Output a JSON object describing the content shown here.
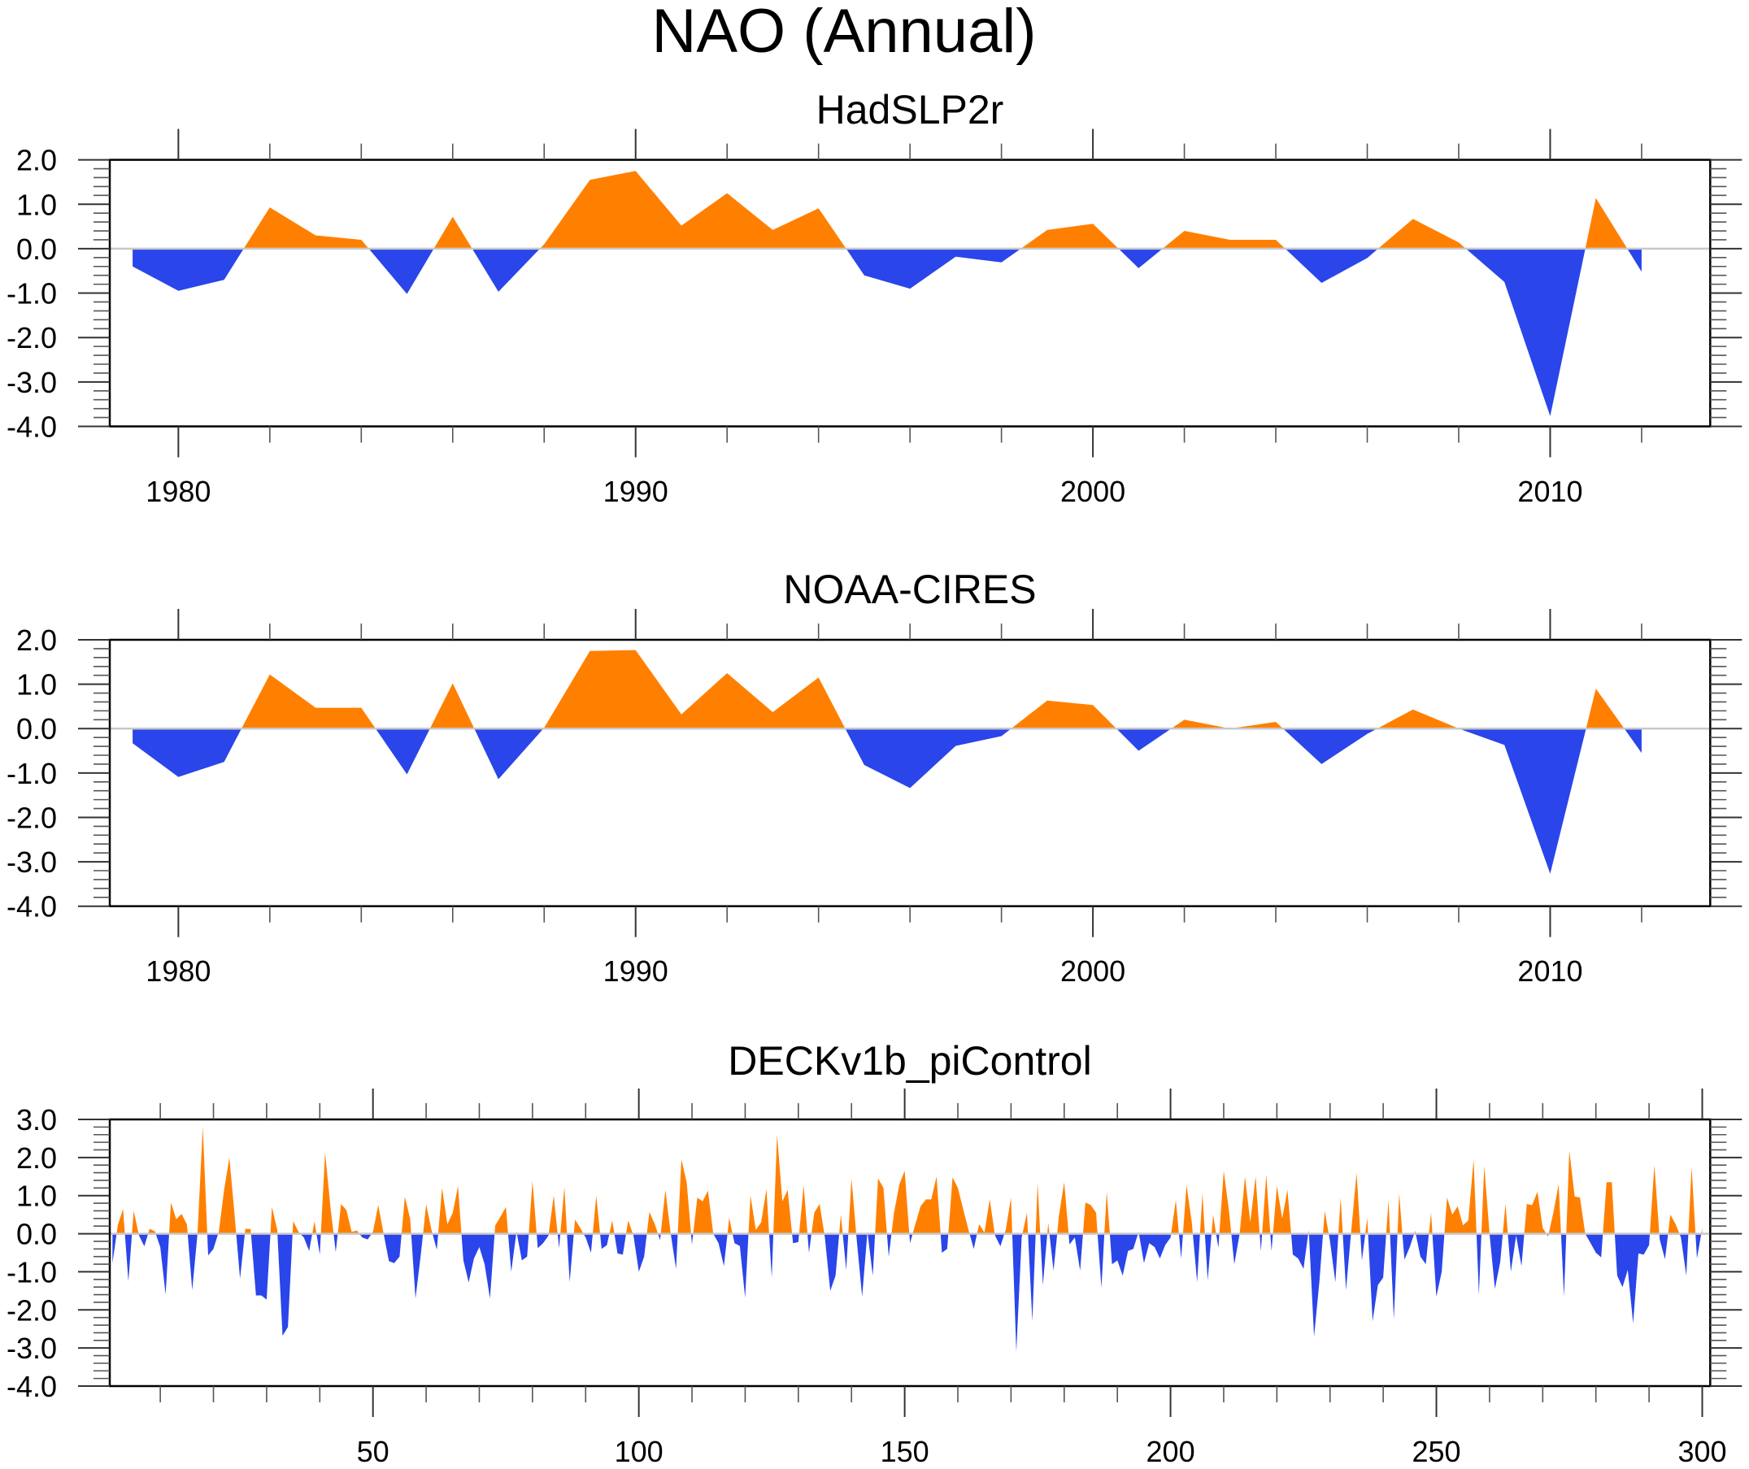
{
  "figure": {
    "title": "NAO (Annual)",
    "colors": {
      "positive": "#ff8000",
      "negative": "#2a45ea",
      "zero_line": "#c8c8c8"
    }
  },
  "chart_data": [
    {
      "type": "area",
      "title": "HadSLP2r",
      "xlabel": "",
      "ylabel": "",
      "xlim": [
        1978.5,
        2013.5
      ],
      "ylim": [
        -4.0,
        2.0
      ],
      "x_major_ticks": [
        1980,
        1990,
        2000,
        2010
      ],
      "x_minor_step": 2,
      "y_major_ticks": [
        2.0,
        1.0,
        0.0,
        -1.0,
        -2.0,
        -3.0,
        -4.0
      ],
      "y_tick_labels": [
        "2.0",
        "1.0",
        "0.0",
        "-1.0",
        "-2.0",
        "-3.0",
        "-4.0"
      ],
      "y_minor_step": 0.2,
      "x_tick_labels": [
        "1980",
        "1990",
        "2000",
        "2010"
      ],
      "fill_above_zero": "positive",
      "fill_below_zero": "negative",
      "x": [
        1979,
        1980,
        1981,
        1982,
        1983,
        1984,
        1985,
        1986,
        1987,
        1988,
        1989,
        1990,
        1991,
        1992,
        1993,
        1994,
        1995,
        1996,
        1997,
        1998,
        1999,
        2000,
        2001,
        2002,
        2003,
        2004,
        2005,
        2006,
        2007,
        2008,
        2009,
        2010,
        2011,
        2012
      ],
      "values": [
        -0.4,
        -0.95,
        -0.7,
        0.93,
        0.3,
        0.2,
        -1.02,
        0.72,
        -0.97,
        0.1,
        1.55,
        1.75,
        0.52,
        1.25,
        0.42,
        0.91,
        -0.6,
        -0.9,
        -0.18,
        -0.31,
        0.42,
        0.56,
        -0.44,
        0.4,
        0.2,
        0.2,
        -0.77,
        -0.21,
        0.67,
        0.14,
        -0.75,
        -3.77,
        1.14,
        -0.52
      ]
    },
    {
      "type": "area",
      "title": "NOAA-CIRES",
      "xlabel": "",
      "ylabel": "",
      "xlim": [
        1978.5,
        2013.5
      ],
      "ylim": [
        -4.0,
        2.0
      ],
      "x_major_ticks": [
        1980,
        1990,
        2000,
        2010
      ],
      "x_minor_step": 2,
      "y_major_ticks": [
        2.0,
        1.0,
        0.0,
        -1.0,
        -2.0,
        -3.0,
        -4.0
      ],
      "y_tick_labels": [
        "2.0",
        "1.0",
        "0.0",
        "-1.0",
        "-2.0",
        "-3.0",
        "-4.0"
      ],
      "y_minor_step": 0.2,
      "x_tick_labels": [
        "1980",
        "1990",
        "2000",
        "2010"
      ],
      "fill_above_zero": "positive",
      "fill_below_zero": "negative",
      "x": [
        1979,
        1980,
        1981,
        1982,
        1983,
        1984,
        1985,
        1986,
        1987,
        1988,
        1989,
        1990,
        1991,
        1992,
        1993,
        1994,
        1995,
        1996,
        1997,
        1998,
        1999,
        2000,
        2001,
        2002,
        2003,
        2004,
        2005,
        2006,
        2007,
        2008,
        2009,
        2010,
        2011,
        2012
      ],
      "values": [
        -0.33,
        -1.09,
        -0.75,
        1.22,
        0.47,
        0.47,
        -1.03,
        1.02,
        -1.14,
        0.02,
        1.75,
        1.77,
        0.32,
        1.25,
        0.37,
        1.15,
        -0.82,
        -1.34,
        -0.39,
        -0.17,
        0.63,
        0.53,
        -0.5,
        0.2,
        0.0,
        0.15,
        -0.8,
        -0.12,
        0.43,
        0.0,
        -0.37,
        -3.27,
        0.9,
        -0.55
      ]
    },
    {
      "type": "area",
      "title": "DECKv1b_piControl",
      "xlabel": "",
      "ylabel": "",
      "xlim": [
        0.5,
        301.5
      ],
      "ylim": [
        -4.0,
        3.0
      ],
      "x_major_ticks": [
        50,
        100,
        150,
        200,
        250,
        300
      ],
      "x_minor_step": 10,
      "y_major_ticks": [
        3.0,
        2.0,
        1.0,
        0.0,
        -1.0,
        -2.0,
        -3.0,
        -4.0
      ],
      "y_tick_labels": [
        "3.0",
        "2.0",
        "1.0",
        "0.0",
        "-1.0",
        "-2.0",
        "-3.0",
        "-4.0"
      ],
      "y_minor_step": 0.2,
      "x_tick_labels": [
        "50",
        "100",
        "150",
        "200",
        "250",
        "300"
      ],
      "fill_above_zero": "positive",
      "fill_below_zero": "negative",
      "x_start": 1,
      "x_step": 1,
      "values": [
        -0.78,
        0.22,
        0.65,
        -1.25,
        0.6,
        -0.05,
        -0.33,
        0.13,
        0.06,
        -0.35,
        -1.6,
        0.82,
        0.38,
        0.52,
        0.25,
        -1.48,
        0.0,
        2.8,
        -0.57,
        -0.4,
        0.05,
        1.15,
        2.0,
        0.45,
        -1.18,
        0.13,
        0.12,
        -1.62,
        -1.62,
        -1.73,
        0.7,
        0.1,
        -2.68,
        -2.45,
        0.33,
        0.05,
        -0.1,
        -0.45,
        0.33,
        -0.55,
        2.13,
        0.7,
        -0.48,
        0.78,
        0.62,
        0.05,
        0.08,
        -0.1,
        -0.15,
        0.05,
        0.75,
        0.0,
        -0.72,
        -0.77,
        -0.6,
        0.97,
        0.38,
        -1.7,
        -0.55,
        0.77,
        0.1,
        -0.42,
        1.2,
        0.25,
        0.55,
        1.25,
        -0.7,
        -1.28,
        -0.65,
        -0.35,
        -0.8,
        -1.7,
        0.22,
        0.45,
        0.7,
        -1.0,
        0.05,
        -0.7,
        -0.6,
        1.38,
        -0.38,
        -0.25,
        -0.05,
        1.0,
        -0.38,
        1.22,
        -1.27,
        0.37,
        0.15,
        -0.1,
        -0.5,
        1.0,
        -0.4,
        -0.3,
        0.35,
        -0.52,
        -0.55,
        0.35,
        -0.05,
        -1.0,
        -0.6,
        0.57,
        0.25,
        -0.17,
        1.15,
        0.0,
        -0.92,
        1.95,
        1.35,
        -0.28,
        0.95,
        0.85,
        1.13,
        0.0,
        -0.25,
        -0.85,
        0.42,
        -0.25,
        -0.32,
        -1.68,
        1.0,
        0.1,
        0.3,
        1.17,
        -1.15,
        2.6,
        0.85,
        1.15,
        -0.25,
        -0.22,
        1.27,
        -0.5,
        0.55,
        0.78,
        -0.1,
        -1.5,
        -1.1,
        0.5,
        -0.95,
        1.45,
        -0.2,
        -1.65,
        0.05,
        -1.1,
        1.45,
        1.2,
        -0.6,
        0.55,
        1.3,
        1.65,
        -0.25,
        0.25,
        0.72,
        0.9,
        0.9,
        1.5,
        -0.5,
        -0.4,
        1.48,
        1.2,
        0.65,
        0.1,
        -0.4,
        0.25,
        0.03,
        0.9,
        -0.05,
        -0.33,
        0.1,
        0.95,
        -3.1,
        -0.1,
        0.55,
        -2.3,
        1.33,
        -1.35,
        0.28,
        -0.97,
        0.45,
        1.35,
        -0.28,
        -0.1,
        -0.97,
        0.82,
        0.75,
        0.55,
        -1.42,
        1.1,
        -0.8,
        -0.7,
        -1.1,
        -0.45,
        -0.4,
        0.05,
        -0.77,
        -0.25,
        -0.35,
        -0.65,
        -0.3,
        -0.1,
        0.88,
        -0.65,
        1.28,
        0.3,
        -1.27,
        1.05,
        -1.22,
        0.5,
        -0.37,
        1.65,
        0.6,
        -0.8,
        0.0,
        1.5,
        0.3,
        1.5,
        -0.45,
        1.55,
        -0.45,
        1.25,
        0.4,
        1.15,
        -0.55,
        -0.65,
        -0.92,
        0.1,
        -2.7,
        -1.25,
        0.6,
        -0.2,
        -1.27,
        0.95,
        -1.48,
        0.1,
        1.6,
        -0.7,
        0.42,
        -2.3,
        -1.35,
        -1.15,
        0.88,
        -2.25,
        1.05,
        -0.68,
        -0.35,
        0.08,
        -0.6,
        -0.8,
        0.55,
        -1.65,
        -1.0,
        0.95,
        0.5,
        0.72,
        0.22,
        0.35,
        1.95,
        -1.6,
        1.78,
        0.0,
        -1.45,
        -0.75,
        0.78,
        -1.0,
        -0.05,
        -0.85,
        0.78,
        0.75,
        1.1,
        0.15,
        -0.07,
        0.55,
        1.3,
        -1.65,
        2.18,
        0.98,
        0.95,
        0.0,
        -0.25,
        -0.5,
        -0.62,
        1.35,
        1.35,
        -1.1,
        -1.4,
        -0.95,
        -2.35,
        -0.52,
        -0.55,
        -0.3,
        1.8,
        -0.15,
        -0.67,
        0.5,
        0.25,
        -0.1,
        -1.1,
        1.75,
        -0.65,
        0.15
      ]
    }
  ]
}
